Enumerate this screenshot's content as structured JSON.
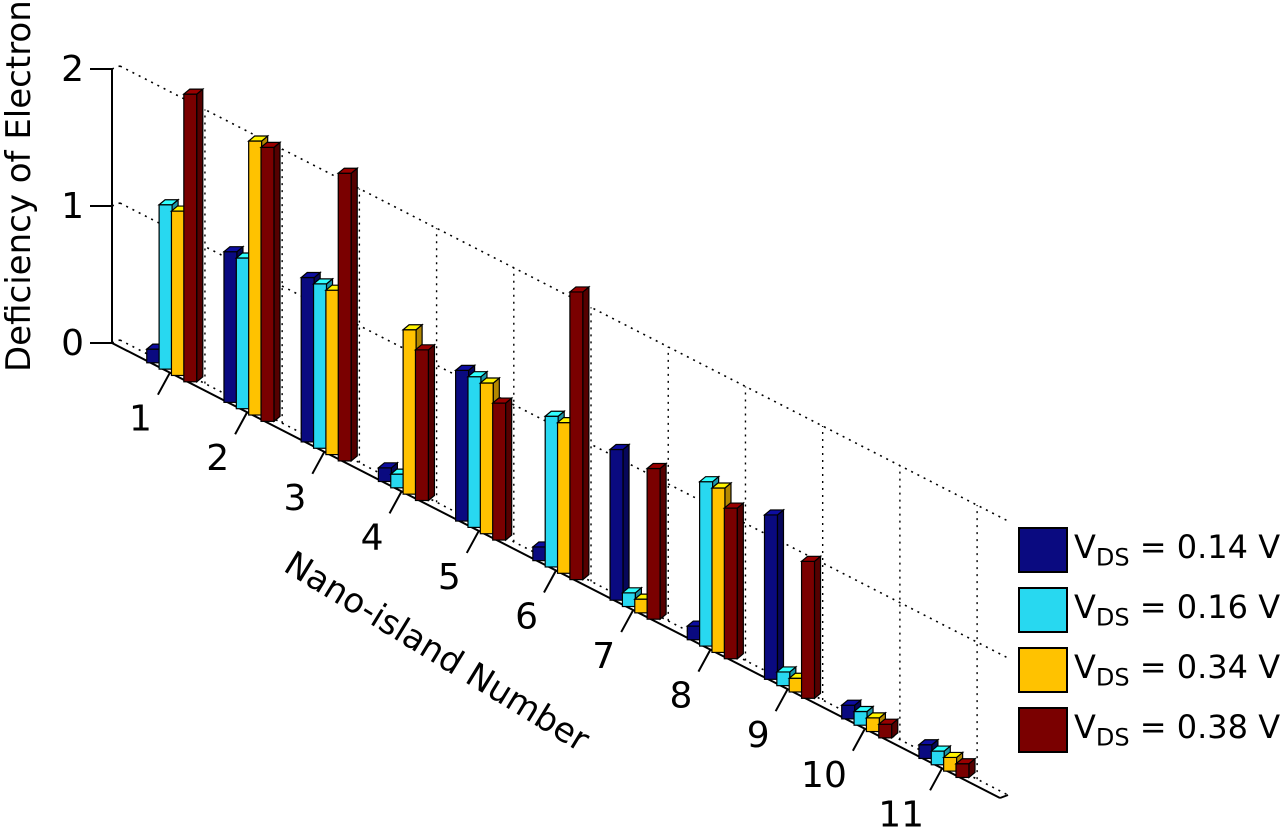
{
  "chart_data": {
    "type": "bar",
    "projection": "3d",
    "title": "",
    "xlabel": "Nano-island Number",
    "ylabel": "Deficiency of Electron",
    "categories": [
      "1",
      "2",
      "3",
      "4",
      "5",
      "6",
      "7",
      "8",
      "9",
      "10",
      "11"
    ],
    "ylim": [
      0,
      2
    ],
    "yticks": [
      "0",
      "1",
      "2"
    ],
    "grid": true,
    "legend_position": "right",
    "series": [
      {
        "label_base": "V",
        "label_sub": "DS",
        "label_rest": " = 0.14 V",
        "color": "#0a0a80",
        "values": [
          0.1,
          1.1,
          1.2,
          0.1,
          1.1,
          0.1,
          1.1,
          0.1,
          1.2,
          0.1,
          0.1
        ]
      },
      {
        "label_base": "V",
        "label_sub": "DS",
        "label_rest": " = 0.16 V",
        "color": "#28d8f0",
        "values": [
          1.2,
          1.1,
          1.2,
          0.1,
          1.1,
          1.1,
          0.1,
          1.2,
          0.1,
          0.1,
          0.1
        ]
      },
      {
        "label_base": "V",
        "label_sub": "DS",
        "label_rest": " = 0.34 V",
        "color": "#ffc200",
        "values": [
          1.2,
          2.0,
          1.2,
          1.2,
          1.1,
          1.1,
          0.1,
          1.2,
          0.1,
          0.1,
          0.1
        ]
      },
      {
        "label_base": "V",
        "label_sub": "DS",
        "label_rest": " = 0.38 V",
        "color": "#7a0000",
        "values": [
          2.1,
          2.0,
          2.1,
          1.1,
          1.0,
          2.1,
          1.1,
          1.1,
          1.0,
          0.1,
          0.1
        ]
      }
    ]
  }
}
